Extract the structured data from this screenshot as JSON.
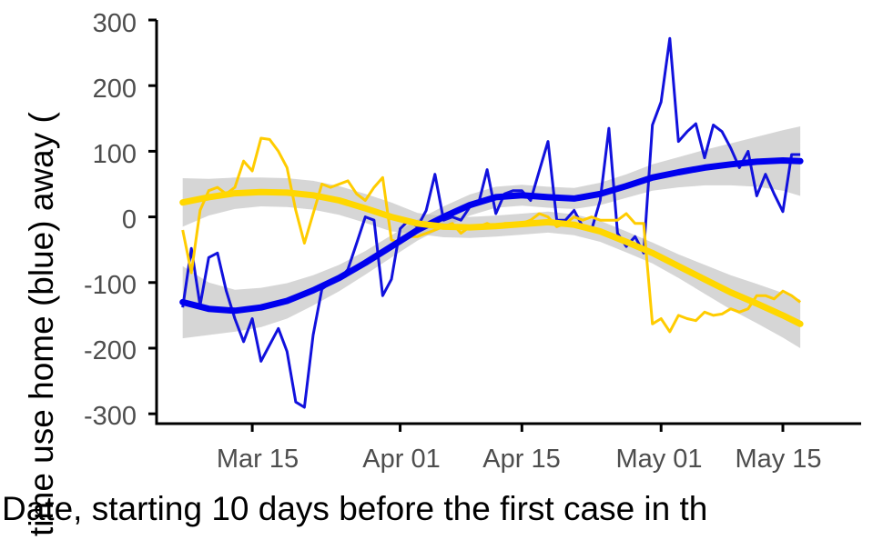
{
  "chart_data": {
    "type": "line",
    "xlabel": "Date, starting 10 days before the first case in th",
    "ylabel": "time use home (blue) away (",
    "x_ticks": [
      "Mar 15",
      "Apr 01",
      "Apr 15",
      "May 01",
      "May 15"
    ],
    "x_tick_dates": [
      "2020-03-15",
      "2020-04-01",
      "2020-04-15",
      "2020-05-01",
      "2020-05-15"
    ],
    "xlim": [
      "2020-03-04",
      "2020-05-24"
    ],
    "y_ticks": [
      "300",
      "200",
      "100",
      "0",
      "-100",
      "-200",
      "-300"
    ],
    "ylim": [
      -315,
      300
    ],
    "grid": false,
    "series": [
      {
        "style": "raw",
        "color": "#1111dd",
        "x": [
          "2020-03-07",
          "2020-03-08",
          "2020-03-09",
          "2020-03-10",
          "2020-03-11",
          "2020-03-12",
          "2020-03-13",
          "2020-03-14",
          "2020-03-15",
          "2020-03-16",
          "2020-03-17",
          "2020-03-18",
          "2020-03-19",
          "2020-03-20",
          "2020-03-21",
          "2020-03-22",
          "2020-03-23",
          "2020-03-24",
          "2020-03-25",
          "2020-03-26",
          "2020-03-27",
          "2020-03-28",
          "2020-03-29",
          "2020-03-30",
          "2020-03-31",
          "2020-04-01",
          "2020-04-02",
          "2020-04-03",
          "2020-04-04",
          "2020-04-05",
          "2020-04-06",
          "2020-04-07",
          "2020-04-08",
          "2020-04-09",
          "2020-04-10",
          "2020-04-11",
          "2020-04-12",
          "2020-04-13",
          "2020-04-14",
          "2020-04-15",
          "2020-04-16",
          "2020-04-17",
          "2020-04-18",
          "2020-04-19",
          "2020-04-20",
          "2020-04-21",
          "2020-04-22",
          "2020-04-23",
          "2020-04-24",
          "2020-04-25",
          "2020-04-26",
          "2020-04-27",
          "2020-04-28",
          "2020-04-29",
          "2020-04-30",
          "2020-05-01",
          "2020-05-02",
          "2020-05-03",
          "2020-05-04",
          "2020-05-05",
          "2020-05-06",
          "2020-05-07",
          "2020-05-08",
          "2020-05-09",
          "2020-05-10",
          "2020-05-11",
          "2020-05-12",
          "2020-05-13",
          "2020-05-14",
          "2020-05-15",
          "2020-05-16",
          "2020-05-17"
        ],
        "y": [
          -138,
          -48,
          -135,
          -62,
          -55,
          -112,
          -155,
          -190,
          -155,
          -220,
          -195,
          -170,
          -205,
          -282,
          -290,
          -180,
          -110,
          -100,
          -95,
          -80,
          -40,
          0,
          -5,
          -120,
          -95,
          -18,
          -5,
          -15,
          10,
          65,
          -5,
          0,
          -5,
          15,
          20,
          72,
          5,
          35,
          40,
          40,
          25,
          70,
          115,
          -5,
          -5,
          10,
          -15,
          -20,
          25,
          135,
          -25,
          -45,
          -30,
          -55,
          140,
          175,
          272,
          115,
          130,
          142,
          90,
          140,
          130,
          105,
          75,
          100,
          32,
          65,
          35,
          8,
          95,
          95
        ]
      },
      {
        "style": "raw",
        "color": "#ffcc00",
        "x": [
          "2020-03-07",
          "2020-03-08",
          "2020-03-09",
          "2020-03-10",
          "2020-03-11",
          "2020-03-12",
          "2020-03-13",
          "2020-03-14",
          "2020-03-15",
          "2020-03-16",
          "2020-03-17",
          "2020-03-18",
          "2020-03-19",
          "2020-03-20",
          "2020-03-21",
          "2020-03-22",
          "2020-03-23",
          "2020-03-24",
          "2020-03-25",
          "2020-03-26",
          "2020-03-27",
          "2020-03-28",
          "2020-03-29",
          "2020-03-30",
          "2020-03-31",
          "2020-04-01",
          "2020-04-02",
          "2020-04-03",
          "2020-04-04",
          "2020-04-05",
          "2020-04-06",
          "2020-04-07",
          "2020-04-08",
          "2020-04-09",
          "2020-04-10",
          "2020-04-11",
          "2020-04-12",
          "2020-04-13",
          "2020-04-14",
          "2020-04-15",
          "2020-04-16",
          "2020-04-17",
          "2020-04-18",
          "2020-04-19",
          "2020-04-20",
          "2020-04-21",
          "2020-04-22",
          "2020-04-23",
          "2020-04-24",
          "2020-04-25",
          "2020-04-26",
          "2020-04-27",
          "2020-04-28",
          "2020-04-29",
          "2020-04-30",
          "2020-05-01",
          "2020-05-02",
          "2020-05-03",
          "2020-05-04",
          "2020-05-05",
          "2020-05-06",
          "2020-05-07",
          "2020-05-08",
          "2020-05-09",
          "2020-05-10",
          "2020-05-11",
          "2020-05-12",
          "2020-05-13",
          "2020-05-14",
          "2020-05-15",
          "2020-05-16",
          "2020-05-17"
        ],
        "y": [
          -20,
          -85,
          10,
          40,
          45,
          35,
          45,
          85,
          70,
          120,
          118,
          100,
          75,
          10,
          -40,
          5,
          50,
          45,
          50,
          55,
          35,
          25,
          45,
          60,
          -35,
          -40,
          -30,
          -30,
          -25,
          -20,
          -15,
          -10,
          -25,
          -15,
          -15,
          -10,
          -15,
          -10,
          -10,
          -10,
          -5,
          5,
          0,
          -15,
          -10,
          0,
          -5,
          0,
          -5,
          -5,
          -5,
          5,
          -10,
          -10,
          -163,
          -155,
          -175,
          -150,
          -155,
          -158,
          -145,
          -150,
          -148,
          -140,
          -145,
          -140,
          -120,
          -120,
          -125,
          -113,
          -120,
          -130
        ]
      },
      {
        "style": "smooth",
        "color": "#0000ee",
        "band_color": "#bbbbbb",
        "x": [
          "2020-03-07",
          "2020-03-10",
          "2020-03-13",
          "2020-03-16",
          "2020-03-19",
          "2020-03-22",
          "2020-03-25",
          "2020-03-28",
          "2020-03-31",
          "2020-04-03",
          "2020-04-06",
          "2020-04-09",
          "2020-04-12",
          "2020-04-15",
          "2020-04-18",
          "2020-04-21",
          "2020-04-24",
          "2020-04-27",
          "2020-04-30",
          "2020-05-03",
          "2020-05-06",
          "2020-05-09",
          "2020-05-12",
          "2020-05-15",
          "2020-05-17"
        ],
        "y": [
          -130,
          -140,
          -143,
          -138,
          -128,
          -112,
          -93,
          -70,
          -45,
          -20,
          0,
          18,
          30,
          33,
          30,
          28,
          35,
          47,
          60,
          68,
          75,
          80,
          84,
          86,
          85
        ],
        "lower": [
          -185,
          -180,
          -175,
          -168,
          -155,
          -135,
          -113,
          -88,
          -62,
          -36,
          -16,
          2,
          14,
          17,
          14,
          12,
          18,
          29,
          40,
          45,
          48,
          48,
          46,
          40,
          32
        ],
        "upper": [
          -75,
          -100,
          -111,
          -108,
          -101,
          -89,
          -73,
          -52,
          -28,
          -4,
          16,
          34,
          46,
          49,
          46,
          44,
          52,
          65,
          80,
          91,
          102,
          112,
          122,
          132,
          138
        ]
      },
      {
        "style": "smooth",
        "color": "#ffd700",
        "band_color": "#bbbbbb",
        "x": [
          "2020-03-07",
          "2020-03-10",
          "2020-03-13",
          "2020-03-16",
          "2020-03-19",
          "2020-03-22",
          "2020-03-25",
          "2020-03-28",
          "2020-03-31",
          "2020-04-03",
          "2020-04-06",
          "2020-04-09",
          "2020-04-12",
          "2020-04-15",
          "2020-04-18",
          "2020-04-21",
          "2020-04-24",
          "2020-04-27",
          "2020-04-30",
          "2020-05-03",
          "2020-05-06",
          "2020-05-09",
          "2020-05-12",
          "2020-05-15",
          "2020-05-17"
        ],
        "y": [
          22,
          30,
          36,
          38,
          37,
          33,
          25,
          13,
          0,
          -10,
          -15,
          -16,
          -14,
          -11,
          -8,
          -12,
          -22,
          -38,
          -55,
          -75,
          -95,
          -115,
          -132,
          -150,
          -163
        ],
        "lower": [
          -15,
          2,
          12,
          16,
          15,
          11,
          3,
          -9,
          -22,
          -26,
          -31,
          -32,
          -30,
          -27,
          -24,
          -28,
          -38,
          -54,
          -71,
          -93,
          -117,
          -141,
          -162,
          -184,
          -200
        ],
        "upper": [
          59,
          58,
          60,
          60,
          59,
          55,
          47,
          35,
          22,
          6,
          1,
          0,
          2,
          5,
          8,
          4,
          -6,
          -22,
          -39,
          -57,
          -73,
          -89,
          -102,
          -116,
          -126
        ]
      }
    ]
  }
}
